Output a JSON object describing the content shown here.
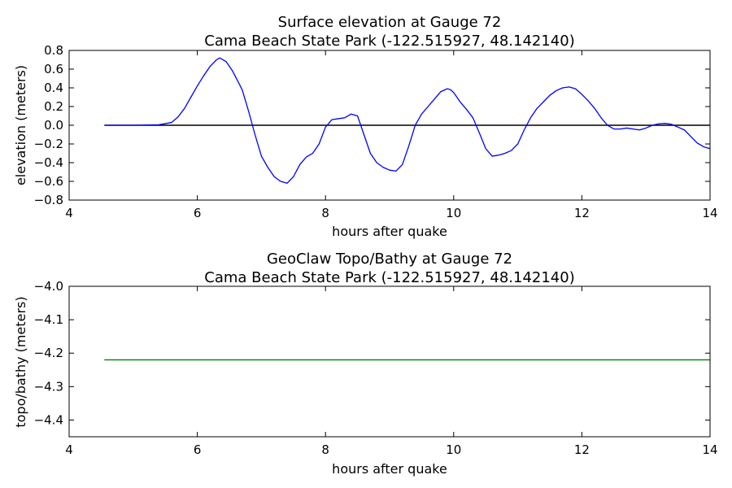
{
  "chart_data": [
    {
      "type": "line",
      "title": "Surface elevation at Gauge 72",
      "subtitle": "Cama Beach State Park  (-122.515927, 48.142140)",
      "xlabel": "hours after quake",
      "ylabel": "elevation (meters)",
      "xlim": [
        4,
        14
      ],
      "ylim": [
        -0.8,
        0.8
      ],
      "xticks": [
        "4",
        "6",
        "8",
        "10",
        "12",
        "14"
      ],
      "yticks": [
        "0.8",
        "0.6",
        "0.4",
        "0.2",
        "0.0",
        "−0.2",
        "−0.4",
        "−0.6",
        "−0.8"
      ],
      "grid": false,
      "series": [
        {
          "color": "#0000ff",
          "x": [
            4.55,
            5.0,
            5.4,
            5.6,
            5.7,
            5.8,
            5.9,
            6.0,
            6.1,
            6.2,
            6.3,
            6.35,
            6.45,
            6.55,
            6.7,
            6.8,
            6.9,
            7.0,
            7.1,
            7.2,
            7.3,
            7.4,
            7.5,
            7.6,
            7.7,
            7.8,
            7.9,
            8.0,
            8.1,
            8.2,
            8.3,
            8.4,
            8.5,
            8.6,
            8.7,
            8.8,
            8.9,
            9.0,
            9.1,
            9.2,
            9.3,
            9.4,
            9.5,
            9.6,
            9.7,
            9.8,
            9.9,
            9.95,
            10.0,
            10.1,
            10.2,
            10.3,
            10.4,
            10.5,
            10.6,
            10.7,
            10.8,
            10.9,
            11.0,
            11.1,
            11.2,
            11.3,
            11.4,
            11.5,
            11.6,
            11.7,
            11.8,
            11.9,
            12.0,
            12.1,
            12.2,
            12.3,
            12.4,
            12.5,
            12.6,
            12.7,
            12.8,
            12.9,
            13.0,
            13.1,
            13.2,
            13.3,
            13.4,
            13.5,
            13.6,
            13.7,
            13.8,
            13.9,
            14.0
          ],
          "y": [
            0.0,
            0.0,
            0.005,
            0.03,
            0.09,
            0.18,
            0.3,
            0.42,
            0.53,
            0.63,
            0.7,
            0.72,
            0.68,
            0.58,
            0.38,
            0.15,
            -0.1,
            -0.33,
            -0.45,
            -0.55,
            -0.6,
            -0.62,
            -0.55,
            -0.42,
            -0.34,
            -0.3,
            -0.2,
            -0.02,
            0.06,
            0.07,
            0.08,
            0.12,
            0.1,
            -0.1,
            -0.3,
            -0.4,
            -0.45,
            -0.48,
            -0.49,
            -0.42,
            -0.22,
            0.0,
            0.12,
            0.2,
            0.28,
            0.36,
            0.39,
            0.38,
            0.35,
            0.25,
            0.17,
            0.08,
            -0.08,
            -0.25,
            -0.33,
            -0.32,
            -0.3,
            -0.27,
            -0.2,
            -0.05,
            0.08,
            0.18,
            0.25,
            0.32,
            0.37,
            0.4,
            0.41,
            0.39,
            0.33,
            0.26,
            0.18,
            0.08,
            0.0,
            -0.04,
            -0.04,
            -0.03,
            -0.04,
            -0.05,
            -0.03,
            0.0,
            0.015,
            0.02,
            0.01,
            -0.02,
            -0.05,
            -0.12,
            -0.19,
            -0.23,
            -0.25
          ]
        }
      ],
      "baseline": {
        "y": 0.0,
        "x": [
          4.55,
          14.0
        ],
        "color": "#000000"
      }
    },
    {
      "type": "line",
      "title": "GeoClaw Topo/Bathy at Gauge 72",
      "subtitle": "Cama Beach State Park  (-122.515927, 48.142140)",
      "xlabel": "hours after quake",
      "ylabel": "topo/bathy (meters)",
      "xlim": [
        4,
        14
      ],
      "ylim": [
        -4.45,
        -4.0
      ],
      "xticks": [
        "4",
        "6",
        "8",
        "10",
        "12",
        "14"
      ],
      "yticks": [
        "−4.0",
        "−4.1",
        "−4.2",
        "−4.3",
        "−4.4"
      ],
      "grid": false,
      "series": [
        {
          "color": "#008000",
          "x": [
            4.55,
            14.0
          ],
          "y": [
            -4.22,
            -4.22
          ]
        }
      ]
    }
  ]
}
